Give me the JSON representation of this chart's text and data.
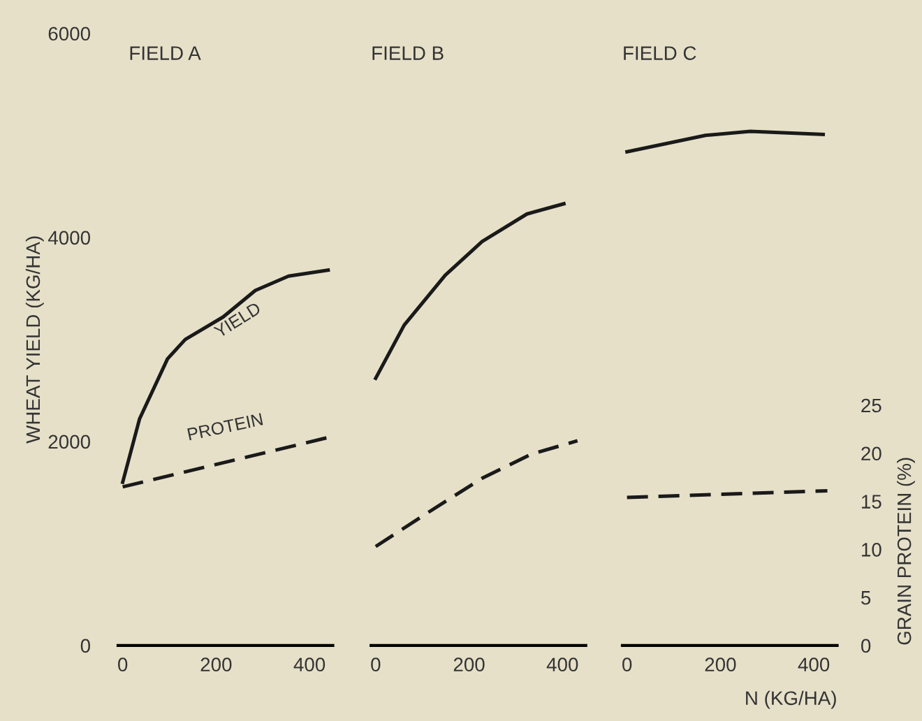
{
  "chart_data": [
    {
      "type": "line",
      "title": "FIELD A",
      "ylabel": "WHEAT YIELD (KG/HA)",
      "xlim": [
        -10,
        450
      ],
      "xticks": [
        0,
        200,
        400
      ],
      "ylim": [
        0,
        6000
      ],
      "yticks": [
        0,
        2000,
        4000,
        6000
      ],
      "y2lim": [
        0,
        25
      ],
      "tick_labels": "xy",
      "grid": false,
      "legend": false,
      "annotations": [
        "YIELD",
        "PROTEIN"
      ],
      "series": [
        {
          "color": "#1a1a1a",
          "line_style": "solid",
          "x": [
            0,
            36,
            96,
            134,
            215,
            284,
            355,
            440
          ],
          "values": [
            1600,
            2220,
            2810,
            3000,
            3220,
            3480,
            3620,
            3680
          ]
        },
        {
          "color": "#1a1a1a",
          "line_style": "dashed",
          "axis": "y2",
          "x": [
            0,
            445
          ],
          "values": [
            16.5,
            21.7
          ]
        }
      ]
    },
    {
      "type": "line",
      "title": "FIELD B",
      "xlim": [
        -10,
        450
      ],
      "xticks": [
        0,
        200,
        400
      ],
      "ylim": [
        0,
        6000
      ],
      "y2lim": [
        0,
        25
      ],
      "tick_labels": "x",
      "grid": false,
      "legend": false,
      "series": [
        {
          "color": "#1a1a1a",
          "line_style": "solid",
          "x": [
            0,
            61,
            149,
            228,
            324,
            403
          ],
          "values": [
            2620,
            3140,
            3630,
            3960,
            4230,
            4330
          ]
        },
        {
          "color": "#1a1a1a",
          "line_style": "dashed",
          "axis": "y2",
          "x": [
            0,
            111,
            228,
            333,
            432
          ],
          "values": [
            10.3,
            13.8,
            17.4,
            19.9,
            21.3
          ]
        }
      ]
    },
    {
      "type": "line",
      "title": "FIELD C",
      "xlabel": "N (KG/HA)",
      "y2label": "GRAIN PROTEIN (%)",
      "xlim": [
        -10,
        450
      ],
      "xticks": [
        0,
        200,
        400
      ],
      "ylim": [
        0,
        6000
      ],
      "y2lim": [
        0,
        25
      ],
      "y2ticks": [
        0,
        5,
        10,
        15,
        20,
        25
      ],
      "grid": false,
      "legend": false,
      "series": [
        {
          "color": "#1a1a1a",
          "line_style": "solid",
          "x": [
            0,
            168,
            264,
            420
          ],
          "values": [
            4840,
            5000,
            5040,
            5010
          ]
        },
        {
          "color": "#1a1a1a",
          "line_style": "dashed",
          "axis": "y2",
          "x": [
            0,
            429
          ],
          "values": [
            15.4,
            16.1
          ]
        }
      ]
    }
  ]
}
